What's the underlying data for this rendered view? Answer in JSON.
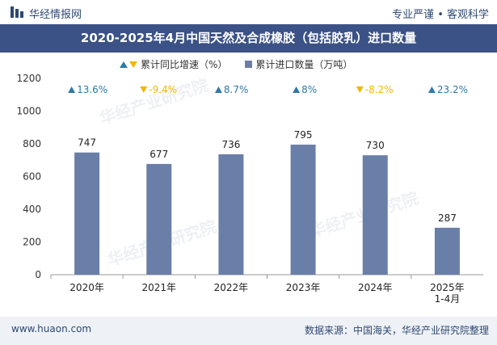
{
  "header": {
    "brand": "华经情报网",
    "tagline": "专业严谨 • 客观科学"
  },
  "title": "2020-2025年4月中国天然及合成橡胶（包括胶乳）进口数量",
  "legend": {
    "growth": "累计同比增速（%）",
    "volume": "累计进口数量（万吨）"
  },
  "footer": {
    "site": "www.huaon.com",
    "source": "数据来源：中国海关，华经产业研究院整理"
  },
  "watermark": "华经产业研究院",
  "colors": {
    "bar": "#6a7fa8",
    "up": "#2e79a6",
    "down": "#f3b700",
    "title_bg": "#3b5286"
  },
  "chart_data": {
    "type": "bar",
    "categories": [
      "2020年",
      "2021年",
      "2022年",
      "2023年",
      "2024年",
      "2025年\n1-4月"
    ],
    "series": [
      {
        "name": "累计进口数量（万吨）",
        "values": [
          747,
          677,
          736,
          795,
          730,
          287
        ]
      },
      {
        "name": "累计同比增速（%）",
        "values": [
          13.6,
          -9.4,
          8.7,
          8,
          -8.2,
          23.2
        ]
      }
    ],
    "growth_labels": [
      "13.6%",
      "-9.4%",
      "8.7%",
      "8%",
      "-8.2%",
      "23.2%"
    ],
    "yticks": [
      0,
      200,
      400,
      600,
      800,
      1000,
      1200
    ],
    "ylim": [
      0,
      1200
    ],
    "grid": false,
    "legend_position": "top"
  }
}
